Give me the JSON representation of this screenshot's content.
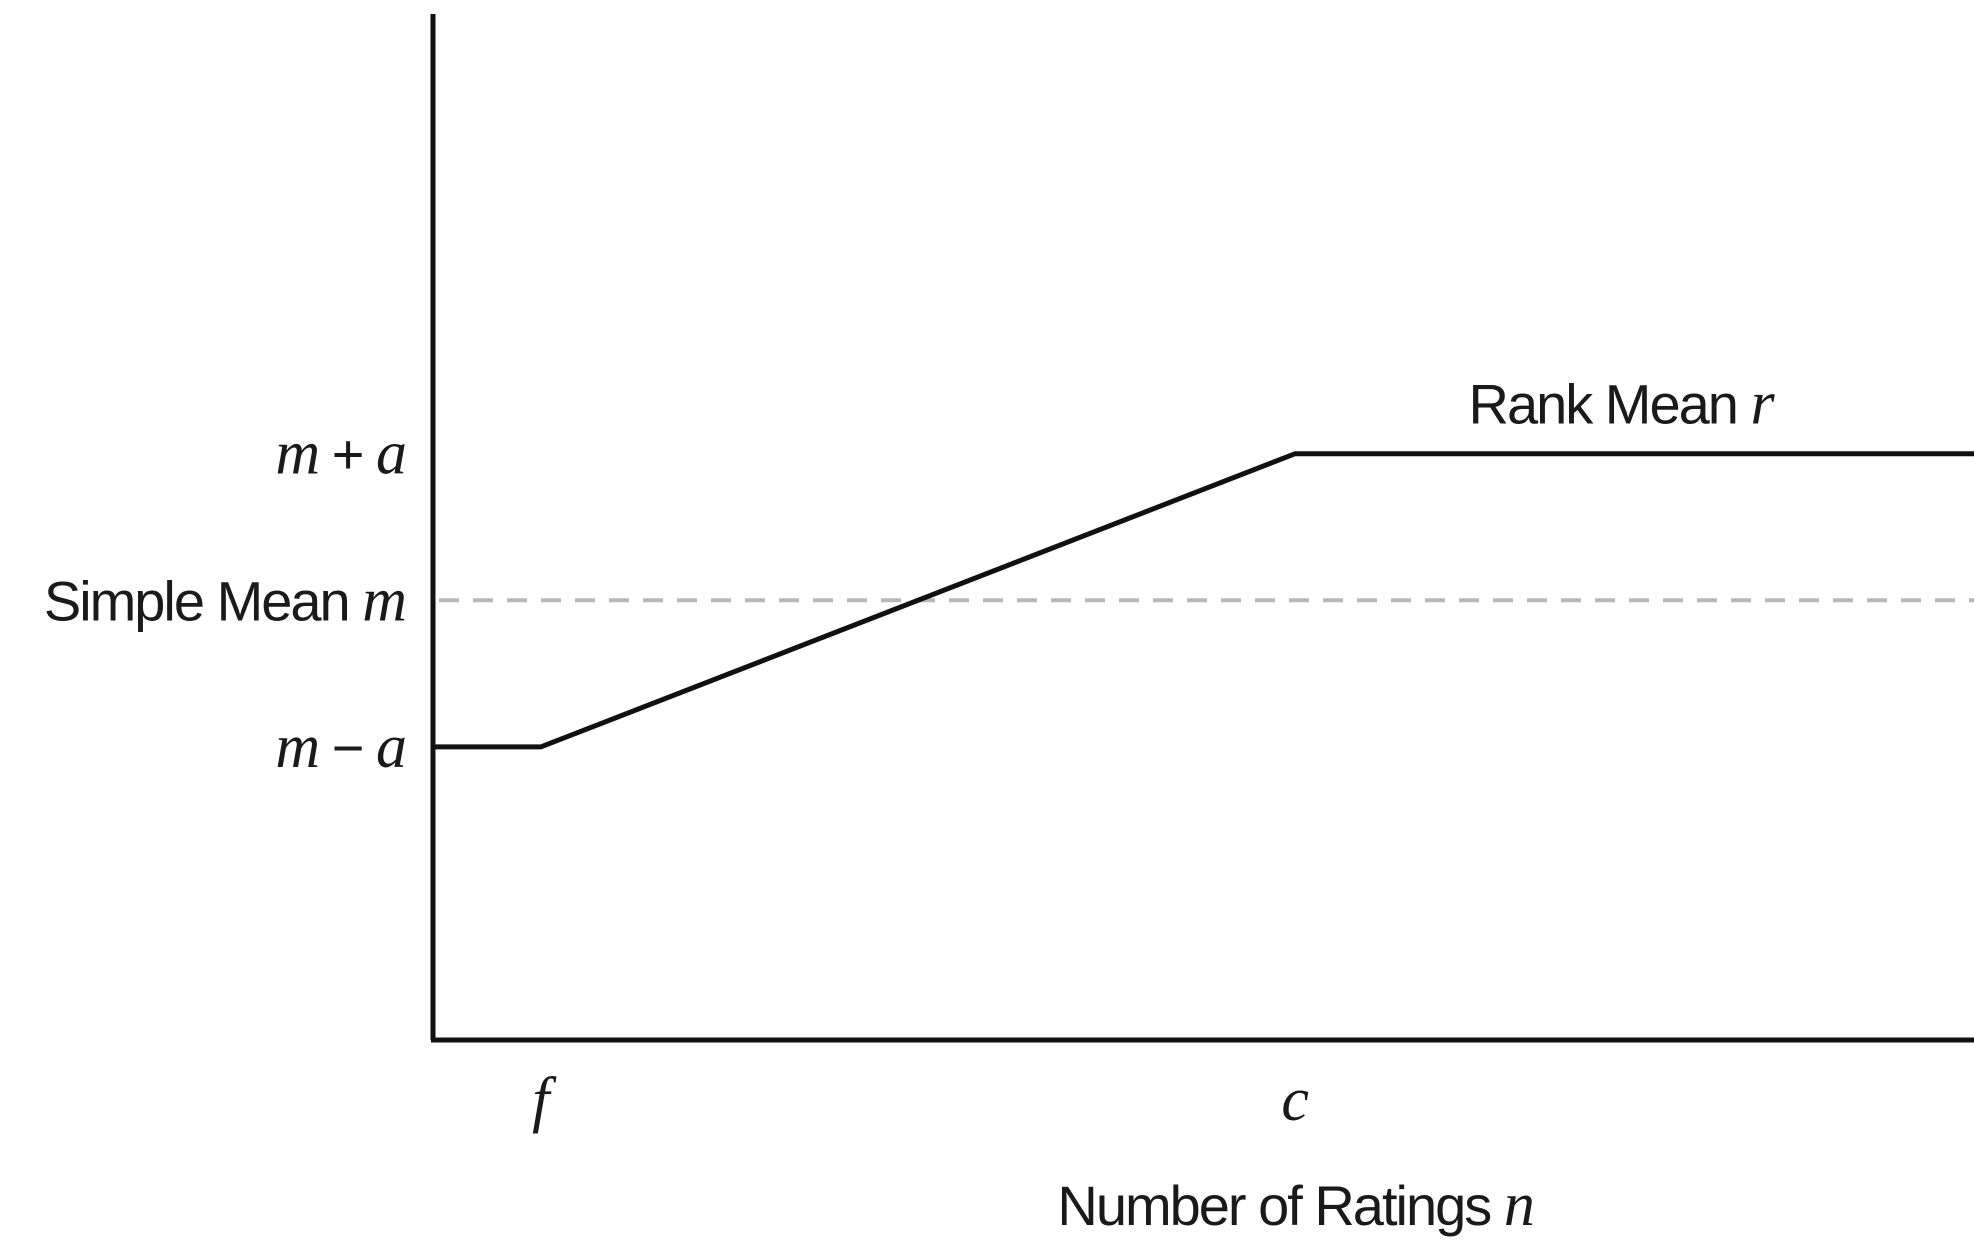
{
  "chart_data": {
    "type": "line",
    "title": "",
    "xlabel": {
      "text": "Number of Ratings ",
      "var": "n"
    },
    "ylabel": "",
    "x_ticks": [
      {
        "label": "f",
        "value": 1
      },
      {
        "label": "c",
        "value": 8
      }
    ],
    "y_ticks": [
      {
        "parts": [
          {
            "t": "m",
            "i": true
          },
          {
            "t": " + ",
            "i": false
          },
          {
            "t": "a",
            "i": true
          }
        ],
        "value": 1
      },
      {
        "parts": [
          {
            "t": "Simple Mean ",
            "i": false
          },
          {
            "t": "m",
            "i": true
          }
        ],
        "value": 0
      },
      {
        "parts": [
          {
            "t": "m",
            "i": true
          },
          {
            "t": " − ",
            "i": false
          },
          {
            "t": "a",
            "i": true
          }
        ],
        "value": -1
      }
    ],
    "xlim": [
      0,
      14.3
    ],
    "ylim": [
      -3,
      4
    ],
    "series": [
      {
        "label": {
          "text": "Rank Mean ",
          "var": "r"
        },
        "style": "solid",
        "color": "#111111",
        "points": [
          {
            "x": 0,
            "y": -1
          },
          {
            "x": 1,
            "y": -1
          },
          {
            "x": 8,
            "y": 1
          },
          {
            "x": 14.3,
            "y": 1
          }
        ]
      }
    ],
    "reference_lines": [
      {
        "axis": "y",
        "value": 0,
        "style": "dashed",
        "color": "#b8b8b8"
      }
    ],
    "grid": false,
    "legend": "none"
  }
}
